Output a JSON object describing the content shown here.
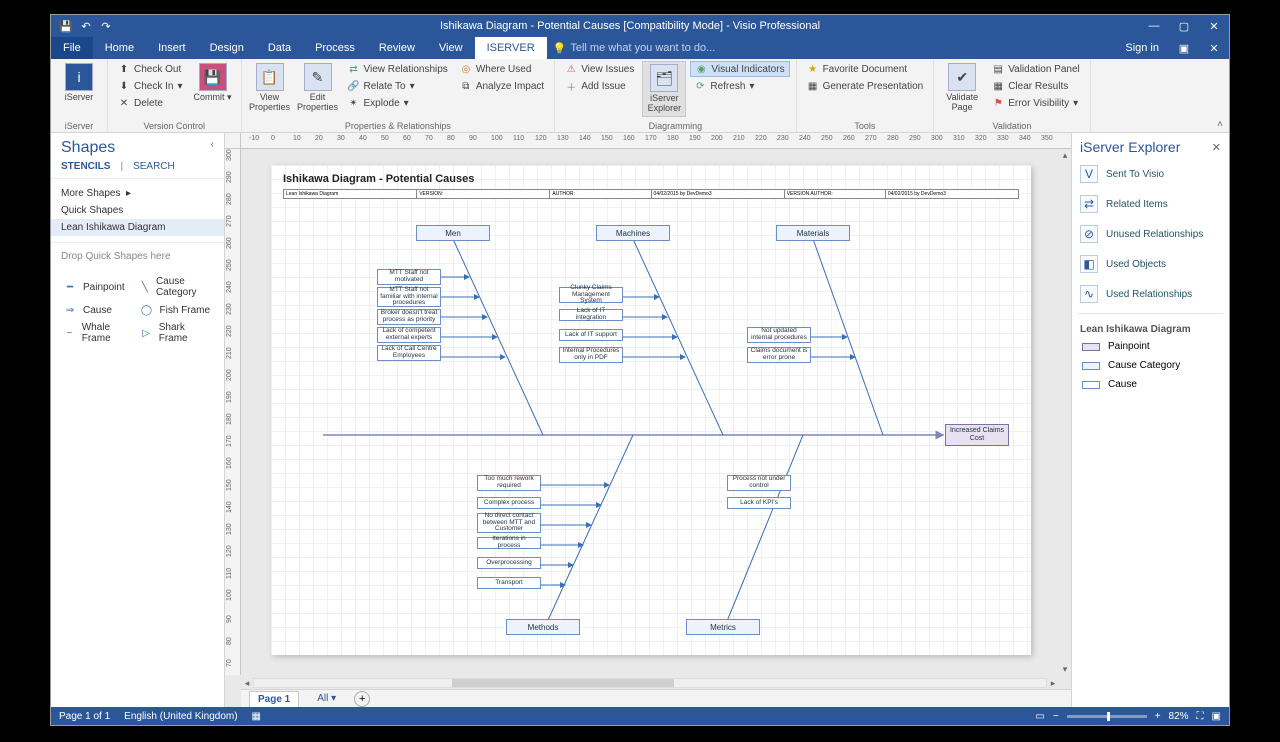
{
  "titlebar": {
    "title": "Ishikawa Diagram - Potential Causes  [Compatibility Mode] - Visio Professional"
  },
  "menubar": {
    "file": "File",
    "tabs": [
      "Home",
      "Insert",
      "Design",
      "Data",
      "Process",
      "Review",
      "View",
      "ISERVER"
    ],
    "active": "ISERVER",
    "tell": "Tell me what you want to do...",
    "signin": "Sign in"
  },
  "ribbon": {
    "groups": {
      "iserver": {
        "label": "iServer",
        "big": "iServer"
      },
      "version": {
        "label": "Version Control",
        "commit": "Commit",
        "checkout": "Check Out",
        "checkin": "Check In",
        "delete": "Delete"
      },
      "props": {
        "label": "Properties & Relationships",
        "viewprops": "View\nProperties",
        "editprops": "Edit\nProperties",
        "viewrel": "View Relationships",
        "relateto": "Relate To",
        "explode": "Explode",
        "whereused": "Where Used",
        "analyze": "Analyze Impact"
      },
      "diag": {
        "label": "Diagramming",
        "viewissues": "View Issues",
        "addissue": "Add Issue",
        "visind": "Visual Indicators",
        "refresh": "Refresh",
        "expl": "iServer\nExplorer"
      },
      "tools": {
        "label": "Tools",
        "fav": "Favorite Document",
        "gen": "Generate Presentation",
        "valpage": "Validate\nPage"
      },
      "validation": {
        "label": "Validation",
        "panel": "Validation Panel",
        "clear": "Clear Results",
        "errv": "Error Visibility"
      }
    }
  },
  "shapes": {
    "title": "Shapes",
    "stencils": "STENCILS",
    "search": "SEARCH",
    "more": "More Shapes",
    "quick": "Quick Shapes",
    "lean": "Lean Ishikawa Diagram",
    "drop": "Drop Quick Shapes here",
    "items": {
      "painpoint": "Painpoint",
      "causecat": "Cause Category",
      "cause": "Cause",
      "fishframe": "Fish Frame",
      "whale": "Whale Frame",
      "shark": "Shark Frame"
    }
  },
  "doc": {
    "title": "Ishikawa Diagram - Potential Causes",
    "hdr": {
      "a": "Lean Ishikawa Diagram",
      "b": "VERSION:",
      "c": "AUTHOR:",
      "d": "04/02/2015 by DevDemo3",
      "e": "VERSION AUTHOR:",
      "f": "04/02/2015 by DevDemo3"
    }
  },
  "fish": {
    "effect": "Increased Claims Cost",
    "categories": {
      "men": "Men",
      "machines": "Machines",
      "materials": "Materials",
      "methods": "Methods",
      "metrics": "Metrics"
    },
    "causes": {
      "men": [
        "MTT Staff not motivated",
        "MTT Staff not familiar with internal procedures",
        "Broker doesn't treat process as priority",
        "Lack of competent external experts",
        "Lack of Call Centre Employees"
      ],
      "machines": [
        "Clunky Claims Management System",
        "Lack of IT integration",
        "Lack of IT support",
        "Internal Procedures only in PDF"
      ],
      "materials": [
        "Not updated internal procedures",
        "Claims document is error prone"
      ],
      "methods": [
        "Too much rework required",
        "Complex process",
        "No direct contact between MTT and Customer",
        "Iterations in process",
        "Overprocessing",
        "Transport"
      ],
      "metrics": [
        "Process not under control",
        "Lack of KPI's"
      ]
    },
    "colors": {
      "cat_fill": "#eef3fb",
      "cat_border": "#6a8fc7",
      "cause_border": "#6a8fc7",
      "effect_fill": "#e8e2f0",
      "spine": "#7d87be",
      "bone": "#3a6fb7"
    }
  },
  "explorer": {
    "title": "iServer Explorer",
    "items": [
      "Sent To Visio",
      "Related Items",
      "Unused Relationships",
      "Used Objects",
      "Used Relationships"
    ],
    "sub": "Lean Ishikawa Diagram",
    "legend": [
      {
        "label": "Painpoint",
        "color": "#e8e2f0"
      },
      {
        "label": "Cause Category",
        "color": "#eef3fb"
      },
      {
        "label": "Cause",
        "color": "#ffffff"
      }
    ]
  },
  "pagetabs": {
    "page1": "Page 1",
    "all": "All"
  },
  "status": {
    "page": "Page 1 of 1",
    "lang": "English (United Kingdom)",
    "zoom": "82%"
  },
  "ruler_h": [
    -10,
    0,
    10,
    20,
    30,
    40,
    50,
    60,
    70,
    80,
    90,
    100,
    110,
    120,
    130,
    140,
    150,
    160,
    170,
    180,
    190,
    200,
    210,
    220,
    230,
    240,
    250,
    260,
    270,
    280,
    290,
    300,
    310,
    320,
    330,
    340,
    350
  ],
  "ruler_v": [
    300,
    290,
    280,
    270,
    260,
    250,
    240,
    230,
    220,
    210,
    200,
    190,
    180,
    170,
    160,
    150,
    140,
    130,
    120,
    110,
    100,
    90,
    80,
    70
  ]
}
